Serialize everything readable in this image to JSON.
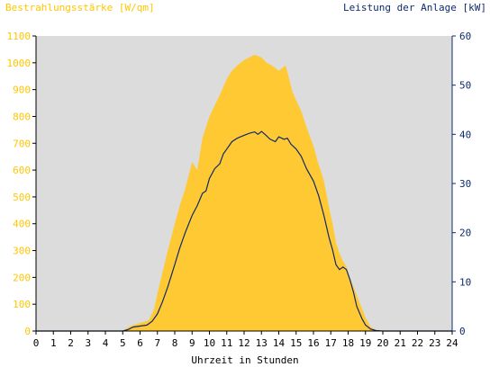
{
  "chart_data": {
    "type": "area",
    "left_axis_title": "Bestrahlungsstärke [W/qm]",
    "right_axis_title": "Leistung der Anlage [kW]",
    "xlabel": "Uhrzeit in Stunden",
    "xlim": [
      0,
      24
    ],
    "x_ticks": [
      0,
      1,
      2,
      3,
      4,
      5,
      6,
      7,
      8,
      9,
      10,
      11,
      12,
      13,
      14,
      15,
      16,
      17,
      18,
      19,
      20,
      21,
      22,
      23,
      24
    ],
    "y_left_lim": [
      0,
      1100
    ],
    "y_left_ticks": [
      0,
      100,
      200,
      300,
      400,
      500,
      600,
      700,
      800,
      900,
      1000,
      1100
    ],
    "y_right_lim": [
      0,
      60
    ],
    "y_right_ticks": [
      0,
      10,
      20,
      30,
      40,
      50,
      60
    ],
    "grid": false,
    "colors": {
      "plot_bg": "#dcdcdc",
      "irradiance": "#ffc933",
      "power": "#0f2a6b",
      "left_axis": "#ffc600",
      "right_axis": "#0f2a6b"
    },
    "series": [
      {
        "axis": "left",
        "style": "area",
        "x": [
          0,
          5.0,
          5.2,
          5.6,
          6.0,
          6.5,
          6.8,
          7.0,
          7.3,
          7.6,
          8.0,
          8.3,
          8.6,
          9.0,
          9.3,
          9.6,
          9.8,
          10.0,
          10.3,
          10.6,
          10.8,
          11.0,
          11.3,
          11.6,
          12.0,
          12.3,
          12.6,
          12.8,
          13.0,
          13.3,
          13.6,
          14.0,
          14.2,
          14.4,
          14.6,
          14.8,
          15.0,
          15.3,
          15.6,
          16.0,
          16.3,
          16.6,
          16.9,
          17.1,
          17.3,
          17.5,
          17.7,
          17.9,
          18.1,
          18.4,
          18.7,
          19.0,
          19.3,
          19.6,
          19.8,
          20.0,
          24
        ],
        "y": [
          0,
          0,
          10,
          22,
          30,
          40,
          80,
          140,
          220,
          300,
          400,
          470,
          530,
          630,
          600,
          720,
          760,
          800,
          840,
          880,
          910,
          940,
          970,
          990,
          1010,
          1020,
          1030,
          1025,
          1020,
          1000,
          990,
          970,
          980,
          990,
          940,
          890,
          860,
          820,
          760,
          690,
          620,
          560,
          460,
          400,
          330,
          290,
          260,
          240,
          200,
          150,
          100,
          50,
          15,
          5,
          2,
          0,
          0
        ]
      },
      {
        "axis": "right",
        "style": "line",
        "x": [
          0,
          5.0,
          5.3,
          5.6,
          6.0,
          6.4,
          6.7,
          7.0,
          7.3,
          7.6,
          8.0,
          8.3,
          8.6,
          9.0,
          9.3,
          9.6,
          9.8,
          10.0,
          10.3,
          10.6,
          10.8,
          11.0,
          11.3,
          11.6,
          12.0,
          12.3,
          12.6,
          12.8,
          13.0,
          13.2,
          13.5,
          13.8,
          14.0,
          14.3,
          14.5,
          14.7,
          15.0,
          15.3,
          15.6,
          16.0,
          16.3,
          16.6,
          16.9,
          17.1,
          17.3,
          17.5,
          17.7,
          17.9,
          18.1,
          18.3,
          18.5,
          18.8,
          19.0,
          19.3,
          19.6,
          20.0,
          24
        ],
        "y": [
          0,
          0,
          0.3,
          0.8,
          1.0,
          1.2,
          2.0,
          3.5,
          6.0,
          9.0,
          13.5,
          17.0,
          20.0,
          23.5,
          25.5,
          28.0,
          28.5,
          31.0,
          33.0,
          34.0,
          36.0,
          37.0,
          38.5,
          39.2,
          39.8,
          40.2,
          40.5,
          40.0,
          40.6,
          40.0,
          39.0,
          38.5,
          39.5,
          39.0,
          39.2,
          38.0,
          37.0,
          35.5,
          33.0,
          30.5,
          27.5,
          23.5,
          19.0,
          16.5,
          13.5,
          12.5,
          13.0,
          12.5,
          10.5,
          8.0,
          5.0,
          2.5,
          1.2,
          0.4,
          0.1,
          0,
          0
        ]
      }
    ]
  }
}
